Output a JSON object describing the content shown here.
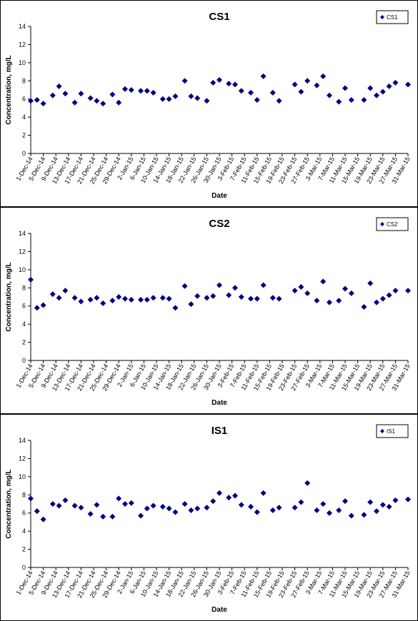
{
  "chart_data": [
    {
      "type": "scatter",
      "title": "CS1",
      "xlabel": "Date",
      "ylabel": "Concentration, mg/L",
      "ylim": [
        0,
        14
      ],
      "yticks": [
        0,
        2,
        4,
        6,
        8,
        10,
        12,
        14
      ],
      "xrange": [
        "2014-12-01",
        "2015-03-31"
      ],
      "xtick_labels": [
        "1-Dec-14",
        "5-Dec-14",
        "9-Dec-14",
        "13-Dec-14",
        "17-Dec-14",
        "21-Dec-14",
        "25-Dec-14",
        "29-Dec-14",
        "2-Jan-15",
        "6-Jan-15",
        "10-Jan-15",
        "14-Jan-15",
        "18-Jan-15",
        "22-Jan-15",
        "26-Jan-15",
        "30-Jan-15",
        "3-Feb-15",
        "7-Feb-15",
        "11-Feb-15",
        "15-Feb-15",
        "19-Feb-15",
        "23-Feb-15",
        "27-Feb-15",
        "3-Mar-15",
        "7-Mar-15",
        "11-Mar-15",
        "15-Mar-15",
        "19-Mar-15",
        "23-Mar-15",
        "27-Mar-15",
        "31-Mar-15"
      ],
      "legend": "top-right",
      "marker_color": "#000080",
      "series": [
        {
          "name": "CS1",
          "x": [
            "2014-12-01",
            "2014-12-03",
            "2014-12-05",
            "2014-12-08",
            "2014-12-10",
            "2014-12-12",
            "2014-12-15",
            "2014-12-17",
            "2014-12-20",
            "2014-12-22",
            "2014-12-24",
            "2014-12-27",
            "2014-12-29",
            "2014-12-31",
            "2015-01-02",
            "2015-01-05",
            "2015-01-07",
            "2015-01-09",
            "2015-01-12",
            "2015-01-14",
            "2015-01-16",
            "2015-01-19",
            "2015-01-21",
            "2015-01-23",
            "2015-01-26",
            "2015-01-28",
            "2015-01-30",
            "2015-02-02",
            "2015-02-04",
            "2015-02-06",
            "2015-02-09",
            "2015-02-11",
            "2015-02-13",
            "2015-02-16",
            "2015-02-18",
            "2015-02-23",
            "2015-02-25",
            "2015-02-27",
            "2015-03-02",
            "2015-03-04",
            "2015-03-06",
            "2015-03-09",
            "2015-03-11",
            "2015-03-13",
            "2015-03-17",
            "2015-03-19",
            "2015-03-21",
            "2015-03-23",
            "2015-03-25",
            "2015-03-27",
            "2015-03-31"
          ],
          "y": [
            5.8,
            5.9,
            5.5,
            6.4,
            7.4,
            6.6,
            5.6,
            6.6,
            6.1,
            5.8,
            5.5,
            6.5,
            5.6,
            7.1,
            7.0,
            6.9,
            6.9,
            6.7,
            6.0,
            6.0,
            6.3,
            8.0,
            6.3,
            6.1,
            5.8,
            7.8,
            8.1,
            7.7,
            7.6,
            6.9,
            6.7,
            5.9,
            8.5,
            6.7,
            5.8,
            7.6,
            6.8,
            8.0,
            7.5,
            8.5,
            6.4,
            5.7,
            7.2,
            5.9,
            5.9,
            7.2,
            6.4,
            6.8,
            7.4,
            7.8,
            7.6
          ]
        }
      ]
    },
    {
      "type": "scatter",
      "title": "CS2",
      "xlabel": "Date",
      "ylabel": "Concentration, mg/L",
      "ylim": [
        0,
        14
      ],
      "yticks": [
        0,
        2,
        4,
        6,
        8,
        10,
        12,
        14
      ],
      "xrange": [
        "2014-12-01",
        "2015-03-31"
      ],
      "xtick_labels": [
        "1-Dec-14",
        "5-Dec-14",
        "9-Dec-14",
        "13-Dec-14",
        "17-Dec-14",
        "21-Dec-14",
        "25-Dec-14",
        "29-Dec-14",
        "2-Jan-15",
        "6-Jan-15",
        "10-Jan-15",
        "14-Jan-15",
        "18-Jan-15",
        "22-Jan-15",
        "26-Jan-15",
        "30-Jan-15",
        "3-Feb-15",
        "7-Feb-15",
        "11-Feb-15",
        "15-Feb-15",
        "19-Feb-15",
        "23-Feb-15",
        "27-Feb-15",
        "3-Mar-15",
        "7-Mar-15",
        "11-Mar-15",
        "15-Mar-15",
        "19-Mar-15",
        "23-Mar-15",
        "27-Mar-15",
        "31-Mar-15"
      ],
      "legend": "top-right",
      "marker_color": "#000080",
      "series": [
        {
          "name": "CS2",
          "x": [
            "2014-12-01",
            "2014-12-03",
            "2014-12-05",
            "2014-12-08",
            "2014-12-10",
            "2014-12-12",
            "2014-12-15",
            "2014-12-17",
            "2014-12-20",
            "2014-12-22",
            "2014-12-24",
            "2014-12-27",
            "2014-12-29",
            "2014-12-31",
            "2015-01-02",
            "2015-01-05",
            "2015-01-07",
            "2015-01-09",
            "2015-01-12",
            "2015-01-14",
            "2015-01-16",
            "2015-01-19",
            "2015-01-21",
            "2015-01-23",
            "2015-01-26",
            "2015-01-28",
            "2015-01-30",
            "2015-02-02",
            "2015-02-04",
            "2015-02-06",
            "2015-02-09",
            "2015-02-11",
            "2015-02-13",
            "2015-02-16",
            "2015-02-18",
            "2015-02-23",
            "2015-02-25",
            "2015-02-27",
            "2015-03-02",
            "2015-03-04",
            "2015-03-06",
            "2015-03-09",
            "2015-03-11",
            "2015-03-13",
            "2015-03-17",
            "2015-03-19",
            "2015-03-21",
            "2015-03-23",
            "2015-03-25",
            "2015-03-27",
            "2015-03-31"
          ],
          "y": [
            8.9,
            5.8,
            6.1,
            7.3,
            6.9,
            7.7,
            6.9,
            6.5,
            6.7,
            6.9,
            6.3,
            6.6,
            7.0,
            6.8,
            6.7,
            6.7,
            6.7,
            6.9,
            6.9,
            6.8,
            5.8,
            8.2,
            6.2,
            7.1,
            6.9,
            7.1,
            8.3,
            7.2,
            8.0,
            7.0,
            6.8,
            6.8,
            8.3,
            6.9,
            6.8,
            7.7,
            8.1,
            7.4,
            6.6,
            8.7,
            6.4,
            6.6,
            7.9,
            7.4,
            5.9,
            8.5,
            6.4,
            6.8,
            7.2,
            7.7,
            7.7
          ]
        }
      ]
    },
    {
      "type": "scatter",
      "title": "IS1",
      "xlabel": "Date",
      "ylabel": "Concentration, mg/L",
      "ylim": [
        0,
        14
      ],
      "yticks": [
        0,
        2,
        4,
        6,
        8,
        10,
        12,
        14
      ],
      "xrange": [
        "2014-12-01",
        "2015-03-31"
      ],
      "xtick_labels": [
        "1-Dec-14",
        "5-Dec-14",
        "9-Dec-14",
        "13-Dec-14",
        "17-Dec-14",
        "21-Dec-14",
        "25-Dec-14",
        "29-Dec-14",
        "2-Jan-15",
        "6-Jan-15",
        "10-Jan-15",
        "14-Jan-15",
        "18-Jan-15",
        "22-Jan-15",
        "26-Jan-15",
        "30-Jan-15",
        "3-Feb-15",
        "7-Feb-15",
        "11-Feb-15",
        "15-Feb-15",
        "19-Feb-15",
        "23-Feb-15",
        "27-Feb-15",
        "3-Mar-15",
        "7-Mar-15",
        "11-Mar-15",
        "15-Mar-15",
        "19-Mar-15",
        "23-Mar-15",
        "27-Mar-15",
        "31-Mar-15"
      ],
      "legend": "top-right",
      "marker_color": "#000080",
      "series": [
        {
          "name": "IS1",
          "x": [
            "2014-12-01",
            "2014-12-03",
            "2014-12-05",
            "2014-12-08",
            "2014-12-10",
            "2014-12-12",
            "2014-12-15",
            "2014-12-17",
            "2014-12-20",
            "2014-12-22",
            "2014-12-24",
            "2014-12-27",
            "2014-12-29",
            "2014-12-31",
            "2015-01-02",
            "2015-01-05",
            "2015-01-07",
            "2015-01-09",
            "2015-01-12",
            "2015-01-14",
            "2015-01-16",
            "2015-01-19",
            "2015-01-21",
            "2015-01-23",
            "2015-01-26",
            "2015-01-28",
            "2015-01-30",
            "2015-02-02",
            "2015-02-04",
            "2015-02-06",
            "2015-02-09",
            "2015-02-11",
            "2015-02-13",
            "2015-02-16",
            "2015-02-18",
            "2015-02-23",
            "2015-02-25",
            "2015-02-27",
            "2015-03-02",
            "2015-03-04",
            "2015-03-06",
            "2015-03-09",
            "2015-03-11",
            "2015-03-13",
            "2015-03-17",
            "2015-03-19",
            "2015-03-21",
            "2015-03-23",
            "2015-03-25",
            "2015-03-27",
            "2015-03-31"
          ],
          "y": [
            7.6,
            6.2,
            5.3,
            7.0,
            6.8,
            7.4,
            6.8,
            6.6,
            5.9,
            6.9,
            5.6,
            5.6,
            7.6,
            7.0,
            7.1,
            5.7,
            6.5,
            6.8,
            6.7,
            6.5,
            6.1,
            7.0,
            6.3,
            6.5,
            6.6,
            7.3,
            8.2,
            7.7,
            7.9,
            6.9,
            6.7,
            6.1,
            8.2,
            6.3,
            6.6,
            6.6,
            7.2,
            9.3,
            6.3,
            7.0,
            6.0,
            6.3,
            7.3,
            5.7,
            5.8,
            7.2,
            6.2,
            6.9,
            6.7,
            7.4,
            7.5
          ]
        }
      ]
    }
  ]
}
